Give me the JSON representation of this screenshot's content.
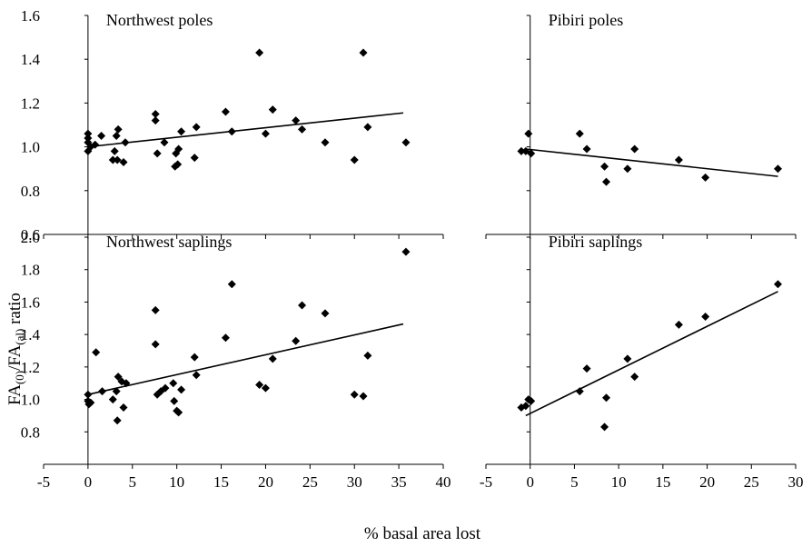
{
  "figure": {
    "ylabel_main": "FA",
    "ylabel_sub1": "(0)",
    "ylabel_mid": "/FA",
    "ylabel_sub2": "(al)",
    "ylabel_end": " ratio",
    "xlabel": "% basal area lost"
  },
  "chart_data": [
    {
      "type": "scatter",
      "title": "Northwest poles",
      "xlim": [
        -5,
        40
      ],
      "ylim": [
        0.6,
        1.6
      ],
      "xticks": [],
      "yticks": [
        0.6,
        0.8,
        1.0,
        1.2,
        1.4,
        1.6
      ],
      "ytick_labels": [
        "0.6",
        "0.8",
        "1.0",
        "1.2",
        "1.4",
        "1.6"
      ],
      "points": [
        [
          0,
          1.04
        ],
        [
          0,
          1.06
        ],
        [
          0,
          1.02
        ],
        [
          0,
          0.98
        ],
        [
          0.3,
          1.0
        ],
        [
          0.8,
          1.01
        ],
        [
          1.5,
          1.05
        ],
        [
          2.8,
          0.94
        ],
        [
          3.0,
          0.98
        ],
        [
          3.2,
          1.05
        ],
        [
          3.3,
          0.94
        ],
        [
          3.4,
          1.08
        ],
        [
          4.0,
          0.93
        ],
        [
          4.2,
          1.02
        ],
        [
          7.6,
          1.15
        ],
        [
          7.6,
          1.12
        ],
        [
          7.8,
          0.97
        ],
        [
          8.6,
          1.02
        ],
        [
          9.8,
          0.91
        ],
        [
          9.9,
          0.97
        ],
        [
          10.1,
          0.92
        ],
        [
          10.2,
          0.99
        ],
        [
          10.5,
          1.07
        ],
        [
          12.0,
          0.95
        ],
        [
          12.2,
          1.09
        ],
        [
          15.5,
          1.16
        ],
        [
          16.2,
          1.07
        ],
        [
          19.3,
          1.43
        ],
        [
          20.0,
          1.06
        ],
        [
          20.8,
          1.17
        ],
        [
          23.4,
          1.12
        ],
        [
          24.1,
          1.08
        ],
        [
          26.7,
          1.02
        ],
        [
          30.0,
          0.94
        ],
        [
          31.0,
          1.43
        ],
        [
          31.5,
          1.09
        ],
        [
          35.8,
          1.02
        ]
      ],
      "trendline": [
        [
          0,
          1.0
        ],
        [
          35.5,
          1.155
        ]
      ]
    },
    {
      "type": "scatter",
      "title": "Pibiri poles",
      "xlim": [
        -5,
        30
      ],
      "ylim": [
        0.6,
        1.6
      ],
      "xticks": [],
      "yticks": [],
      "ytick_labels": [],
      "points": [
        [
          -1.0,
          0.98
        ],
        [
          -0.5,
          0.98
        ],
        [
          -0.2,
          1.06
        ],
        [
          0.1,
          0.97
        ],
        [
          5.6,
          1.06
        ],
        [
          6.4,
          0.99
        ],
        [
          8.4,
          0.91
        ],
        [
          8.6,
          0.84
        ],
        [
          11.0,
          0.9
        ],
        [
          11.8,
          0.99
        ],
        [
          16.8,
          0.94
        ],
        [
          19.8,
          0.86
        ],
        [
          28.0,
          0.9
        ]
      ],
      "trendline": [
        [
          -0.5,
          0.99
        ],
        [
          28.0,
          0.865
        ]
      ]
    },
    {
      "type": "scatter",
      "title": "Northwest saplings",
      "xlim": [
        -5,
        40
      ],
      "ylim": [
        0.6,
        2.0
      ],
      "xticks": [
        -5,
        0,
        5,
        10,
        15,
        20,
        25,
        30,
        35,
        40
      ],
      "xtick_labels": [
        "-5",
        "0",
        "5",
        "10",
        "15",
        "20",
        "25",
        "30",
        "35",
        "40"
      ],
      "yticks": [
        0.8,
        1.0,
        1.2,
        1.4,
        1.6,
        1.8,
        2.0
      ],
      "ytick_labels": [
        "0.8",
        "1.0",
        "1.2",
        "1.4",
        "1.6",
        "1.8",
        "2.0"
      ],
      "points": [
        [
          0,
          1.03
        ],
        [
          0,
          0.99
        ],
        [
          0.1,
          0.97
        ],
        [
          0.3,
          0.98
        ],
        [
          0.9,
          1.29
        ],
        [
          1.6,
          1.05
        ],
        [
          2.8,
          1.0
        ],
        [
          3.2,
          1.05
        ],
        [
          3.3,
          0.87
        ],
        [
          3.4,
          1.14
        ],
        [
          3.8,
          1.11
        ],
        [
          4.0,
          0.95
        ],
        [
          4.3,
          1.1
        ],
        [
          7.6,
          1.55
        ],
        [
          7.6,
          1.34
        ],
        [
          7.8,
          1.03
        ],
        [
          8.2,
          1.05
        ],
        [
          8.7,
          1.07
        ],
        [
          9.6,
          1.1
        ],
        [
          9.7,
          0.99
        ],
        [
          10.0,
          0.93
        ],
        [
          10.2,
          0.92
        ],
        [
          10.5,
          1.06
        ],
        [
          12.0,
          1.26
        ],
        [
          12.2,
          1.15
        ],
        [
          15.5,
          1.38
        ],
        [
          16.2,
          1.71
        ],
        [
          19.3,
          1.09
        ],
        [
          20.0,
          1.07
        ],
        [
          20.8,
          1.25
        ],
        [
          23.4,
          1.36
        ],
        [
          24.1,
          1.58
        ],
        [
          26.7,
          1.53
        ],
        [
          30.0,
          1.03
        ],
        [
          31.0,
          1.02
        ],
        [
          31.5,
          1.27
        ],
        [
          35.8,
          1.91
        ]
      ],
      "trendline": [
        [
          0,
          1.03
        ],
        [
          35.5,
          1.465
        ]
      ]
    },
    {
      "type": "scatter",
      "title": "Pibiri saplings",
      "xlim": [
        -5,
        30
      ],
      "ylim": [
        0.6,
        2.0
      ],
      "xticks": [
        -5,
        0,
        5,
        10,
        15,
        20,
        25,
        30
      ],
      "xtick_labels": [
        "-5",
        "0",
        "5",
        "10",
        "15",
        "20",
        "25",
        "30"
      ],
      "yticks": [],
      "ytick_labels": [],
      "points": [
        [
          -1.0,
          0.95
        ],
        [
          -0.5,
          0.96
        ],
        [
          -0.2,
          1.0
        ],
        [
          0.1,
          0.99
        ],
        [
          5.6,
          1.05
        ],
        [
          6.4,
          1.19
        ],
        [
          8.4,
          0.83
        ],
        [
          8.6,
          1.01
        ],
        [
          11.0,
          1.25
        ],
        [
          11.8,
          1.14
        ],
        [
          16.8,
          1.46
        ],
        [
          19.8,
          1.51
        ],
        [
          28.0,
          1.71
        ]
      ],
      "trendline": [
        [
          -0.5,
          0.9
        ],
        [
          28.0,
          1.665
        ]
      ]
    }
  ]
}
